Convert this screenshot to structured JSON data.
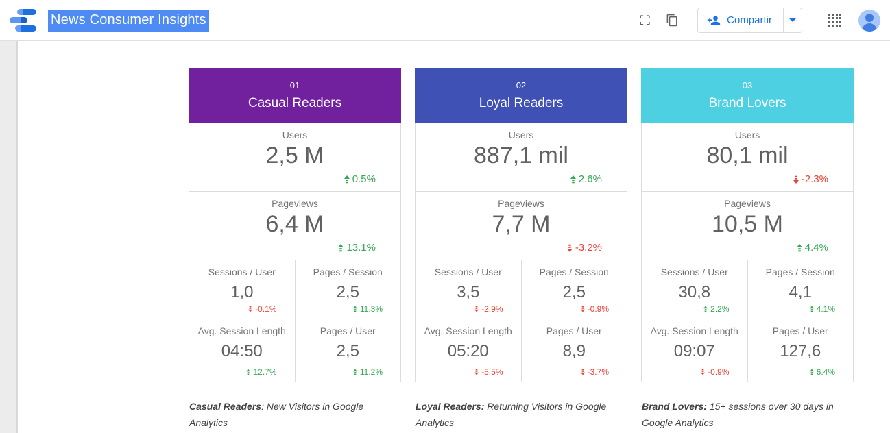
{
  "topbar": {
    "title": "News Consumer Insights",
    "share_label": "Compartir"
  },
  "icons": {
    "logo": "data-studio-logo",
    "fullscreen": "crop-free-corner-brackets",
    "copy": "overlapping-pages",
    "share": "person-add",
    "share_dropdown": "caret-down",
    "grid": "four-square-grid",
    "avatar": "person-circle",
    "positive_change": "arrow-up-dashed-tail",
    "negative_change": "arrow-down-dashed-tail"
  },
  "colors": {
    "accent_blue": "#1A73E8",
    "title_selection": "#4E8BF5",
    "positive": "#34A853",
    "negative": "#EA4335",
    "value_text": "#616161",
    "label_text": "#757575",
    "card1_header": "#71209E",
    "card2_header": "#3F51B5",
    "card3_header": "#4DD0E1"
  },
  "cards": [
    {
      "number": "01",
      "title": "Casual Readers",
      "color": "#71209E",
      "big": [
        {
          "label": "Users",
          "value": "2,5 M",
          "change": "0.5%",
          "dir": "up"
        },
        {
          "label": "Pageviews",
          "value": "6,4 M",
          "change": "13.1%",
          "dir": "up"
        }
      ],
      "small": [
        {
          "label": "Sessions / User",
          "value": "1,0",
          "change": "-0.1%",
          "dir": "down"
        },
        {
          "label": "Pages / Session",
          "value": "2,5",
          "change": "11.3%",
          "dir": "up"
        },
        {
          "label": "Avg. Session Length",
          "value": "04:50",
          "change": "12.7%",
          "dir": "up"
        },
        {
          "label": "Pages / User",
          "value": "2,5",
          "change": "11.2%",
          "dir": "up"
        }
      ],
      "footnote": {
        "bold": "Casual Readers",
        "rest": ": New Visitors in Google Analytics"
      }
    },
    {
      "number": "02",
      "title": "Loyal Readers",
      "color": "#3F51B5",
      "big": [
        {
          "label": "Users",
          "value": "887,1 mil",
          "change": "2.6%",
          "dir": "up"
        },
        {
          "label": "Pageviews",
          "value": "7,7 M",
          "change": "-3.2%",
          "dir": "down"
        }
      ],
      "small": [
        {
          "label": "Sessions / User",
          "value": "3,5",
          "change": "-2.9%",
          "dir": "down"
        },
        {
          "label": "Pages / Session",
          "value": "2,5",
          "change": "-0.9%",
          "dir": "down"
        },
        {
          "label": "Avg. Session Length",
          "value": "05:20",
          "change": "-5.5%",
          "dir": "down"
        },
        {
          "label": "Pages / User",
          "value": "8,9",
          "change": "-3.7%",
          "dir": "down"
        }
      ],
      "footnote": {
        "bold": "Loyal Readers:",
        "rest": " Returning Visitors in Google Analytics"
      }
    },
    {
      "number": "03",
      "title": "Brand Lovers",
      "color": "#4DD0E1",
      "big": [
        {
          "label": "Users",
          "value": "80,1 mil",
          "change": "-2.3%",
          "dir": "down"
        },
        {
          "label": "Pageviews",
          "value": "10,5 M",
          "change": "4.4%",
          "dir": "up"
        }
      ],
      "small": [
        {
          "label": "Sessions / User",
          "value": "30,8",
          "change": "2.2%",
          "dir": "up"
        },
        {
          "label": "Pages / Session",
          "value": "4,1",
          "change": "4.1%",
          "dir": "up"
        },
        {
          "label": "Avg. Session Length",
          "value": "09:07",
          "change": "-0.9%",
          "dir": "down"
        },
        {
          "label": "Pages / User",
          "value": "127,6",
          "change": "6.4%",
          "dir": "up"
        }
      ],
      "footnote": {
        "bold": "Brand Lovers:",
        "rest": " 15+ sessions over 30 days in Google Analytics"
      }
    }
  ]
}
